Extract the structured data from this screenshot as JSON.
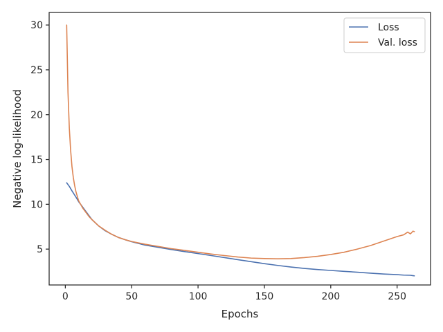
{
  "chart_data": {
    "type": "line",
    "title": "",
    "xlabel": "Epochs",
    "ylabel": "Negative log-likelihood",
    "xlim": [
      -12.2,
      275.2
    ],
    "ylim": [
      1.0,
      31.4
    ],
    "xticks": [
      0,
      50,
      100,
      150,
      200,
      250
    ],
    "yticks": [
      5,
      10,
      15,
      20,
      25,
      30
    ],
    "grid": false,
    "legend_position": "top-right",
    "series": [
      {
        "name": "Loss",
        "color": "#4c72b0",
        "points": [
          [
            1,
            12.4
          ],
          [
            3,
            12.0
          ],
          [
            5,
            11.5
          ],
          [
            8,
            10.8
          ],
          [
            10,
            10.3
          ],
          [
            13,
            9.7
          ],
          [
            15,
            9.3
          ],
          [
            18,
            8.7
          ],
          [
            20,
            8.3
          ],
          [
            25,
            7.6
          ],
          [
            30,
            7.05
          ],
          [
            35,
            6.65
          ],
          [
            40,
            6.3
          ],
          [
            45,
            6.05
          ],
          [
            50,
            5.82
          ],
          [
            60,
            5.45
          ],
          [
            70,
            5.2
          ],
          [
            80,
            4.95
          ],
          [
            90,
            4.72
          ],
          [
            100,
            4.5
          ],
          [
            110,
            4.28
          ],
          [
            120,
            4.05
          ],
          [
            130,
            3.82
          ],
          [
            140,
            3.6
          ],
          [
            150,
            3.38
          ],
          [
            160,
            3.18
          ],
          [
            170,
            3.0
          ],
          [
            180,
            2.85
          ],
          [
            190,
            2.72
          ],
          [
            200,
            2.62
          ],
          [
            210,
            2.52
          ],
          [
            220,
            2.42
          ],
          [
            230,
            2.32
          ],
          [
            240,
            2.22
          ],
          [
            250,
            2.15
          ],
          [
            255,
            2.1
          ],
          [
            260,
            2.08
          ],
          [
            263,
            2.02
          ]
        ]
      },
      {
        "name": "Val. loss",
        "color": "#dd8452",
        "points": [
          [
            1,
            30.0
          ],
          [
            2,
            22.5
          ],
          [
            3,
            18.5
          ],
          [
            4,
            16.0
          ],
          [
            5,
            14.2
          ],
          [
            6,
            13.0
          ],
          [
            7,
            12.1
          ],
          [
            8,
            11.4
          ],
          [
            10,
            10.4
          ],
          [
            13,
            9.6
          ],
          [
            15,
            9.2
          ],
          [
            18,
            8.6
          ],
          [
            20,
            8.3
          ],
          [
            25,
            7.6
          ],
          [
            30,
            7.1
          ],
          [
            35,
            6.65
          ],
          [
            40,
            6.3
          ],
          [
            45,
            6.05
          ],
          [
            50,
            5.85
          ],
          [
            60,
            5.55
          ],
          [
            70,
            5.3
          ],
          [
            80,
            5.05
          ],
          [
            90,
            4.85
          ],
          [
            100,
            4.65
          ],
          [
            110,
            4.45
          ],
          [
            120,
            4.28
          ],
          [
            130,
            4.12
          ],
          [
            140,
            4.0
          ],
          [
            150,
            3.95
          ],
          [
            160,
            3.92
          ],
          [
            170,
            3.95
          ],
          [
            180,
            4.05
          ],
          [
            190,
            4.2
          ],
          [
            200,
            4.4
          ],
          [
            210,
            4.65
          ],
          [
            220,
            5.0
          ],
          [
            230,
            5.4
          ],
          [
            240,
            5.9
          ],
          [
            250,
            6.4
          ],
          [
            255,
            6.6
          ],
          [
            258,
            6.9
          ],
          [
            260,
            6.7
          ],
          [
            262,
            7.0
          ],
          [
            263,
            6.95
          ]
        ]
      }
    ]
  }
}
